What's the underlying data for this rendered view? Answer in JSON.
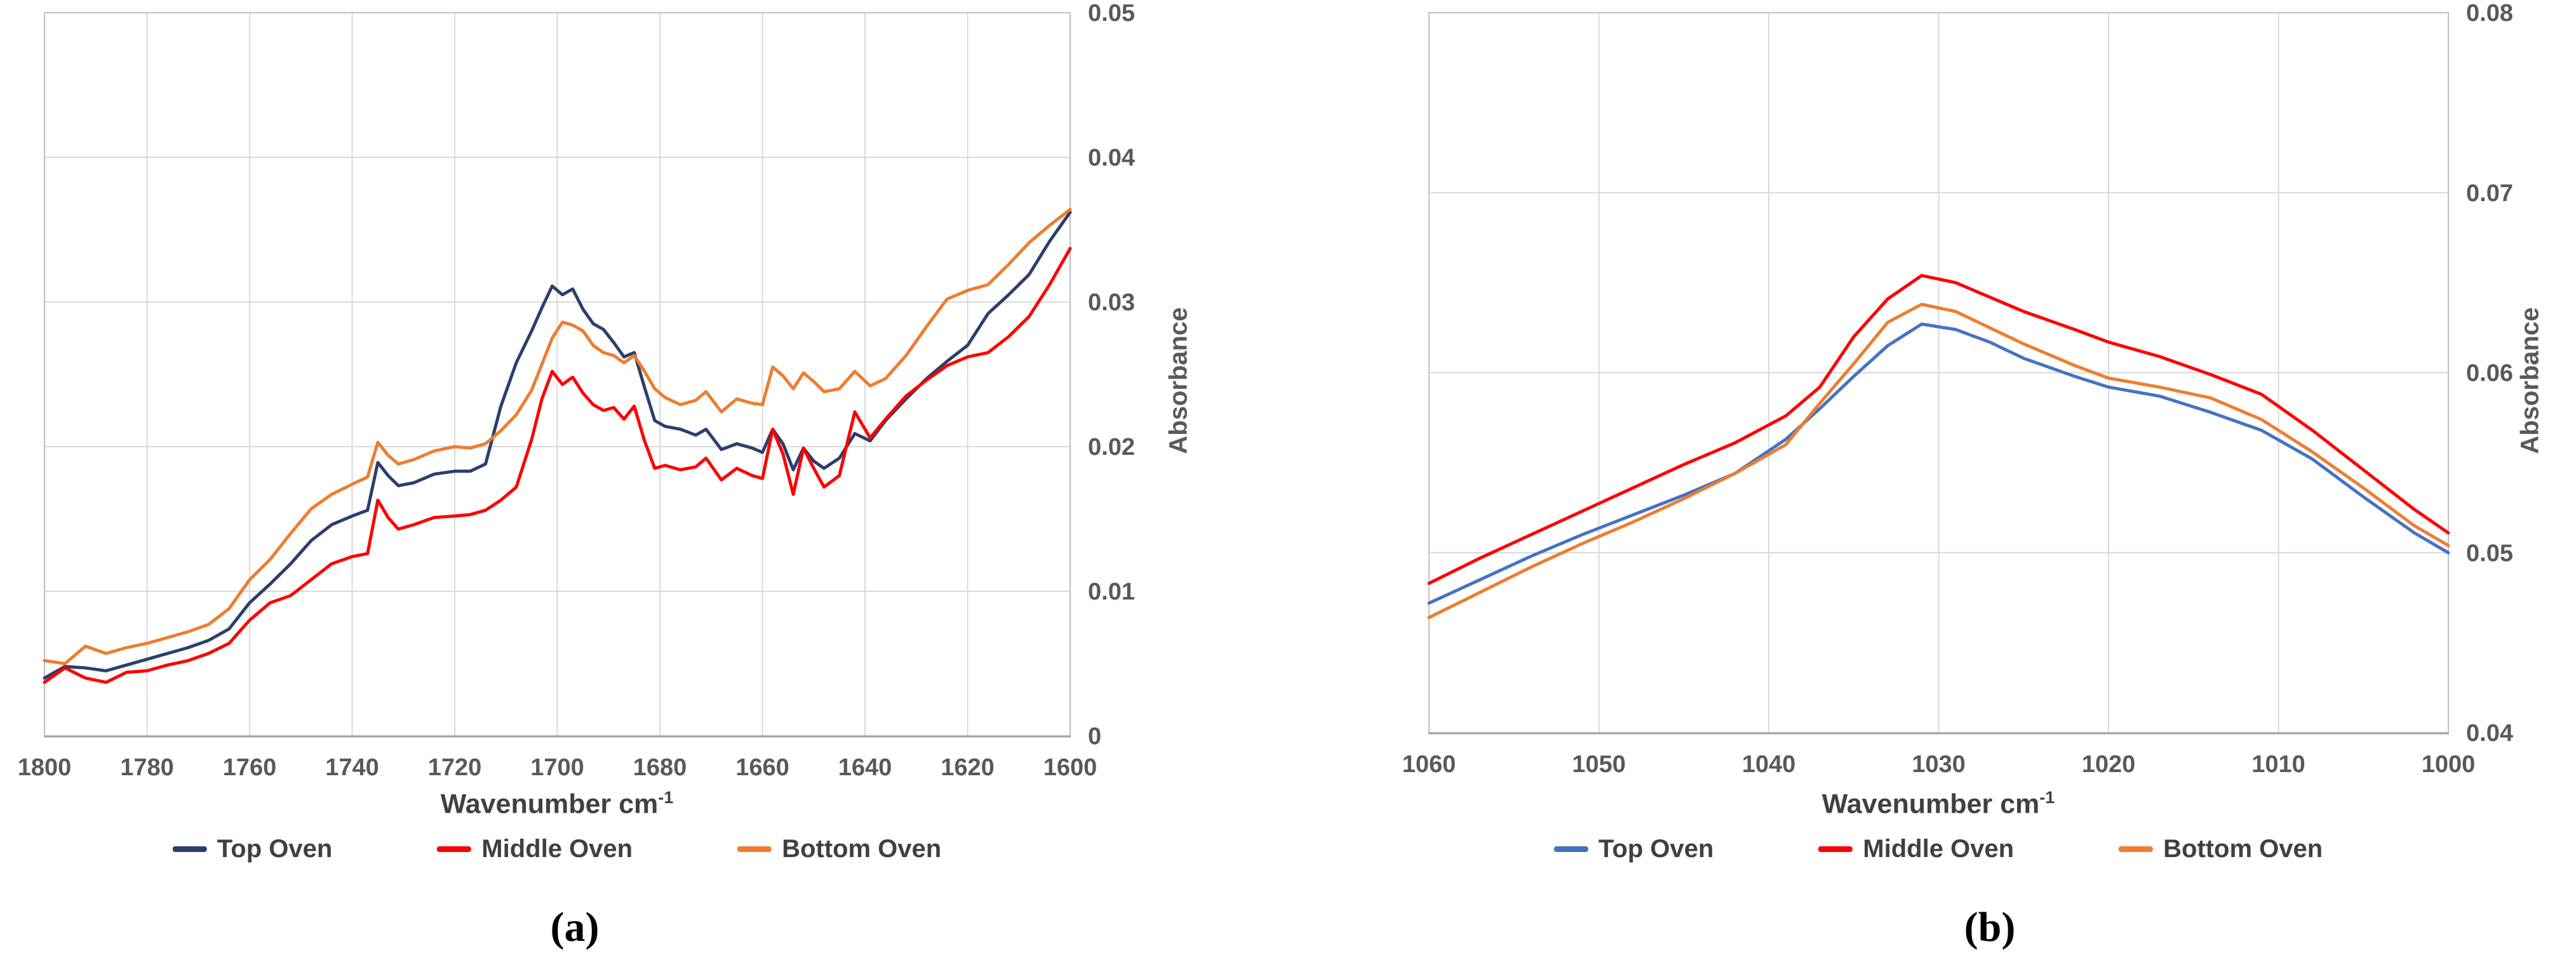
{
  "figure": {
    "captions": {
      "a": "(a)",
      "b": "(b)"
    }
  },
  "theme": {
    "background": "#FFFFFF",
    "gridline": "#D9D9D9",
    "plot_border": "#BFBFBF",
    "axis_line": "#A6A6A6",
    "tick_text": "#595959",
    "title_text": "#404040"
  },
  "chart_data": [
    {
      "type": "line",
      "panel": "a",
      "xlabel_base": "Wavenumber cm",
      "xlabel_sup": "-1",
      "ylabel": "Absorbance",
      "grid": true,
      "legend_position": "bottom",
      "x_axis": {
        "left_value": 1800,
        "right_value": 1600,
        "ticks": [
          1800,
          1780,
          1760,
          1740,
          1720,
          1700,
          1680,
          1660,
          1640,
          1620,
          1600
        ]
      },
      "y_axis": {
        "min": 0,
        "max": 0.05,
        "ticks": [
          {
            "v": 0,
            "label": "0"
          },
          {
            "v": 0.01,
            "label": "0.01"
          },
          {
            "v": 0.02,
            "label": "0.02"
          },
          {
            "v": 0.03,
            "label": "0.03"
          },
          {
            "v": 0.04,
            "label": "0.04"
          },
          {
            "v": 0.05,
            "label": "0.05"
          }
        ]
      },
      "x": [
        1800,
        1796,
        1792,
        1788,
        1784,
        1780,
        1776,
        1772,
        1768,
        1764,
        1760,
        1756,
        1752,
        1748,
        1744,
        1740,
        1737,
        1735,
        1733,
        1731,
        1728,
        1724,
        1720,
        1717,
        1714,
        1711,
        1708,
        1705,
        1703,
        1701,
        1699,
        1697,
        1695,
        1693,
        1691,
        1689,
        1687,
        1685,
        1683,
        1681,
        1679,
        1676,
        1673,
        1671,
        1668,
        1665,
        1662,
        1660,
        1658,
        1656,
        1654,
        1652,
        1650,
        1648,
        1645,
        1642,
        1639,
        1636,
        1632,
        1628,
        1624,
        1620,
        1616,
        1612,
        1608,
        1604,
        1600
      ],
      "series": [
        {
          "name": "Top Oven",
          "color": "#2A3F6C",
          "values": [
            0.004,
            0.0048,
            0.0047,
            0.0045,
            0.0049,
            0.0053,
            0.0057,
            0.0061,
            0.0066,
            0.0074,
            0.0092,
            0.0105,
            0.0119,
            0.0135,
            0.0146,
            0.0152,
            0.0156,
            0.0189,
            0.018,
            0.0173,
            0.0175,
            0.0181,
            0.0183,
            0.0183,
            0.0188,
            0.0228,
            0.0258,
            0.028,
            0.0296,
            0.0311,
            0.0305,
            0.0309,
            0.0295,
            0.0285,
            0.0281,
            0.0272,
            0.0262,
            0.0265,
            0.0241,
            0.0218,
            0.0214,
            0.0212,
            0.0208,
            0.0212,
            0.0198,
            0.0202,
            0.0199,
            0.0196,
            0.0212,
            0.0202,
            0.0184,
            0.0199,
            0.019,
            0.0185,
            0.0192,
            0.0209,
            0.0204,
            0.0218,
            0.0233,
            0.0247,
            0.0259,
            0.027,
            0.0292,
            0.0305,
            0.0319,
            0.0342,
            0.0362
          ]
        },
        {
          "name": "Middle Oven",
          "color": "#FF0000",
          "values": [
            0.0037,
            0.0047,
            0.004,
            0.0037,
            0.0044,
            0.0045,
            0.0049,
            0.0052,
            0.0057,
            0.0064,
            0.008,
            0.0092,
            0.0097,
            0.0108,
            0.0119,
            0.0124,
            0.0126,
            0.0163,
            0.0151,
            0.0143,
            0.0146,
            0.0151,
            0.0152,
            0.0153,
            0.0156,
            0.0163,
            0.0172,
            0.0205,
            0.0233,
            0.0252,
            0.0243,
            0.0248,
            0.0237,
            0.0229,
            0.0225,
            0.0227,
            0.0219,
            0.0228,
            0.0204,
            0.0185,
            0.0187,
            0.0184,
            0.0186,
            0.0192,
            0.0177,
            0.0185,
            0.018,
            0.0178,
            0.0212,
            0.0195,
            0.0167,
            0.0199,
            0.0185,
            0.0172,
            0.018,
            0.0224,
            0.0206,
            0.0219,
            0.0235,
            0.0246,
            0.0256,
            0.0262,
            0.0265,
            0.0276,
            0.029,
            0.0312,
            0.0337
          ]
        },
        {
          "name": "Bottom Oven",
          "color": "#ED7D31",
          "values": [
            0.0052,
            0.005,
            0.0062,
            0.0057,
            0.0061,
            0.0064,
            0.0068,
            0.0072,
            0.0077,
            0.0088,
            0.0108,
            0.0122,
            0.014,
            0.0157,
            0.0167,
            0.0174,
            0.0179,
            0.0203,
            0.0194,
            0.0188,
            0.0191,
            0.0197,
            0.02,
            0.0199,
            0.0202,
            0.0211,
            0.0222,
            0.0239,
            0.0257,
            0.0275,
            0.0286,
            0.0284,
            0.028,
            0.027,
            0.0265,
            0.0263,
            0.0258,
            0.0263,
            0.0252,
            0.024,
            0.0234,
            0.0229,
            0.0232,
            0.0238,
            0.0224,
            0.0233,
            0.023,
            0.0229,
            0.0255,
            0.0249,
            0.024,
            0.0251,
            0.0245,
            0.0238,
            0.024,
            0.0252,
            0.0242,
            0.0247,
            0.0263,
            0.0283,
            0.0302,
            0.0308,
            0.0312,
            0.0326,
            0.0341,
            0.0353,
            0.0364
          ]
        }
      ]
    },
    {
      "type": "line",
      "panel": "b",
      "xlabel_base": "Wavenumber cm",
      "xlabel_sup": "-1",
      "ylabel": "Absorbance",
      "grid": true,
      "legend_position": "bottom",
      "x_axis": {
        "left_value": 1060,
        "right_value": 1000,
        "ticks": [
          1060,
          1050,
          1040,
          1030,
          1020,
          1010,
          1000
        ]
      },
      "y_axis": {
        "min": 0.04,
        "max": 0.08,
        "ticks": [
          {
            "v": 0.04,
            "label": "0.04"
          },
          {
            "v": 0.05,
            "label": "0.05"
          },
          {
            "v": 0.06,
            "label": "0.06"
          },
          {
            "v": 0.07,
            "label": "0.07"
          },
          {
            "v": 0.08,
            "label": "0.08"
          }
        ]
      },
      "x": [
        1060,
        1057,
        1054,
        1051,
        1048,
        1045,
        1042,
        1039,
        1037,
        1035,
        1033,
        1031,
        1029,
        1027,
        1025,
        1022,
        1020,
        1017,
        1014,
        1011,
        1008,
        1005,
        1002,
        1000
      ],
      "series": [
        {
          "name": "Top Oven",
          "color": "#4472C4",
          "values": [
            0.0472,
            0.0485,
            0.0498,
            0.051,
            0.0521,
            0.0532,
            0.0544,
            0.0563,
            0.058,
            0.0598,
            0.0615,
            0.0627,
            0.0624,
            0.0617,
            0.0608,
            0.0598,
            0.0592,
            0.0587,
            0.0578,
            0.0568,
            0.0552,
            0.0531,
            0.0511,
            0.05
          ]
        },
        {
          "name": "Middle Oven",
          "color": "#FF0000",
          "values": [
            0.0483,
            0.0497,
            0.051,
            0.0523,
            0.0536,
            0.0549,
            0.0561,
            0.0576,
            0.0592,
            0.062,
            0.0641,
            0.0654,
            0.065,
            0.0642,
            0.0634,
            0.0624,
            0.0617,
            0.0609,
            0.0599,
            0.0588,
            0.0568,
            0.0546,
            0.0524,
            0.0511
          ]
        },
        {
          "name": "Bottom Oven",
          "color": "#ED7D31",
          "values": [
            0.0464,
            0.0478,
            0.0492,
            0.0505,
            0.0517,
            0.053,
            0.0544,
            0.056,
            0.0583,
            0.0605,
            0.0628,
            0.0638,
            0.0634,
            0.0625,
            0.0616,
            0.0604,
            0.0597,
            0.0592,
            0.0586,
            0.0574,
            0.0556,
            0.0536,
            0.0515,
            0.0504
          ]
        }
      ]
    }
  ]
}
